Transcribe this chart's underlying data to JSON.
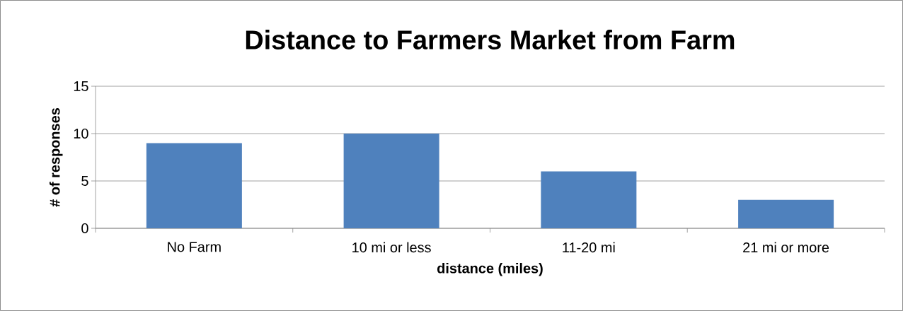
{
  "chart_data": {
    "type": "bar",
    "title": "Distance to Farmers Market from Farm",
    "xlabel": "distance (miles)",
    "ylabel": "# of responses",
    "categories": [
      "No Farm",
      "10 mi or less",
      "11-20 mi",
      "21 mi or more"
    ],
    "values": [
      9,
      10,
      6,
      3
    ],
    "color": "#4f81bd",
    "ylim": [
      0,
      15
    ],
    "yticks": [
      0,
      5,
      10,
      15
    ],
    "grid": "y"
  }
}
